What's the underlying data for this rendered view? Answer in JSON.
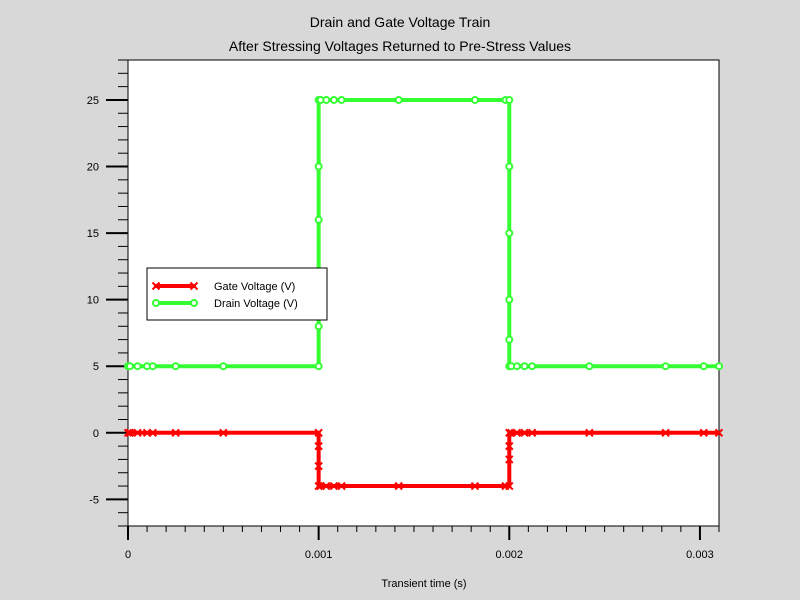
{
  "chart_data": {
    "type": "line",
    "title": "Drain and Gate Voltage Train",
    "subtitle": "After Stressing Voltages Returned to Pre-Stress Values",
    "xlabel": "Transient time (s)",
    "ylabel": "",
    "xlim": [
      0,
      0.0031
    ],
    "ylim": [
      -7,
      28
    ],
    "x_ticks": [
      0,
      0.001,
      0.002,
      0.003
    ],
    "x_tick_labels": [
      "0",
      "0.001",
      "0.002",
      "0.003"
    ],
    "y_ticks": [
      -5,
      0,
      5,
      10,
      15,
      20,
      25
    ],
    "y_tick_labels": [
      "-5",
      "0",
      "5",
      "10",
      "15",
      "20",
      "25"
    ],
    "grid": false,
    "legend_position": "center-left",
    "series": [
      {
        "name": "Gate Voltage (V)",
        "color": "#ff0000",
        "marker": "x",
        "x": [
          0,
          1e-05,
          5e-05,
          0.0001,
          0.00013,
          0.00025,
          0.0005,
          0.001,
          0.001,
          0.001,
          0.001,
          0.00101,
          0.00104,
          0.00108,
          0.00112,
          0.00142,
          0.00182,
          0.00198,
          0.002,
          0.002,
          0.002,
          0.002,
          0.00201,
          0.00204,
          0.00208,
          0.00212,
          0.00242,
          0.00282,
          0.00302,
          0.0031
        ],
        "y": [
          0,
          0,
          0,
          0,
          0,
          0,
          0,
          0,
          -1,
          -2.5,
          -4,
          -4,
          -4,
          -4,
          -4,
          -4,
          -4,
          -4,
          -4,
          -2,
          -1,
          0,
          0,
          0,
          0,
          0,
          0,
          0,
          0,
          0
        ]
      },
      {
        "name": "Drain Voltage (V)",
        "color": "#33ff33",
        "marker": "o",
        "x": [
          0,
          1e-05,
          5e-05,
          0.0001,
          0.00013,
          0.00025,
          0.0005,
          0.001,
          0.001,
          0.001,
          0.001,
          0.001,
          0.001,
          0.00101,
          0.00104,
          0.00108,
          0.00112,
          0.00142,
          0.00182,
          0.00198,
          0.002,
          0.002,
          0.002,
          0.002,
          0.002,
          0.002,
          0.00201,
          0.00204,
          0.00208,
          0.00212,
          0.00242,
          0.00282,
          0.00302,
          0.0031
        ],
        "y": [
          5,
          5,
          5,
          5,
          5,
          5,
          5,
          5,
          8,
          12,
          16,
          20,
          25,
          25,
          25,
          25,
          25,
          25,
          25,
          25,
          25,
          20,
          15,
          10,
          7,
          5,
          5,
          5,
          5,
          5,
          5,
          5,
          5,
          5
        ]
      }
    ]
  }
}
